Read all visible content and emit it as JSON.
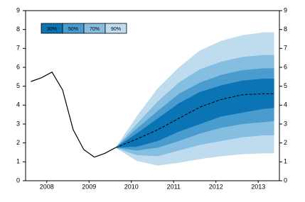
{
  "chart_data": {
    "type": "fan",
    "xlim": [
      2008,
      2014
    ],
    "xticks": [
      {
        "value": 2008.5,
        "label": "2008"
      },
      {
        "value": 2009.5,
        "label": "2009"
      },
      {
        "value": 2010.5,
        "label": "2010"
      },
      {
        "value": 2011.5,
        "label": "2011"
      },
      {
        "value": 2012.5,
        "label": "2012"
      },
      {
        "value": 2013.5,
        "label": "2013"
      }
    ],
    "ylim": [
      0,
      9
    ],
    "yticks": [
      0,
      1,
      2,
      3,
      4,
      5,
      6,
      7,
      8,
      9
    ],
    "y2lim": [
      0,
      9
    ],
    "y2ticks": [
      0,
      1,
      2,
      3,
      4,
      5,
      6,
      7,
      8,
      9
    ],
    "history": {
      "color": "#000000",
      "x": [
        2008.125,
        2008.375,
        2008.625,
        2008.875,
        2009.125,
        2009.375,
        2009.625,
        2009.875,
        2010.125
      ],
      "values": [
        5.25,
        5.45,
        5.75,
        4.8,
        2.7,
        1.65,
        1.25,
        1.45,
        1.75
      ]
    },
    "forecast": {
      "color": "#000000",
      "x": [
        2010.125,
        2010.625,
        2011.125,
        2011.625,
        2012.125,
        2012.625,
        2013.125,
        2013.625,
        2013.875
      ],
      "median": [
        1.75,
        2.2,
        2.7,
        3.3,
        3.9,
        4.3,
        4.55,
        4.6,
        4.6
      ],
      "bands": [
        {
          "name": "30%",
          "color": "#0a74b5",
          "lower": [
            1.75,
            1.8,
            2.1,
            2.6,
            3.0,
            3.4,
            3.6,
            3.8,
            3.85
          ],
          "upper": [
            1.75,
            2.5,
            3.3,
            4.1,
            4.7,
            5.05,
            5.3,
            5.4,
            5.4
          ]
        },
        {
          "name": "50%",
          "color": "#4a9ccf",
          "lower": [
            1.75,
            1.6,
            1.75,
            2.1,
            2.5,
            2.8,
            3.0,
            3.1,
            3.15
          ],
          "upper": [
            1.75,
            2.75,
            3.7,
            4.6,
            5.2,
            5.6,
            5.85,
            5.95,
            5.95
          ]
        },
        {
          "name": "70%",
          "color": "#85bee0",
          "lower": [
            1.75,
            1.35,
            1.3,
            1.6,
            1.9,
            2.1,
            2.3,
            2.4,
            2.4
          ],
          "upper": [
            1.75,
            3.0,
            4.2,
            5.2,
            5.9,
            6.3,
            6.55,
            6.65,
            6.65
          ]
        },
        {
          "name": "90%",
          "color": "#bfdcef",
          "lower": [
            1.75,
            1.05,
            0.8,
            0.95,
            1.15,
            1.3,
            1.4,
            1.45,
            1.45
          ],
          "upper": [
            1.75,
            3.4,
            4.9,
            6.0,
            6.9,
            7.4,
            7.7,
            7.85,
            7.85
          ]
        }
      ]
    }
  }
}
